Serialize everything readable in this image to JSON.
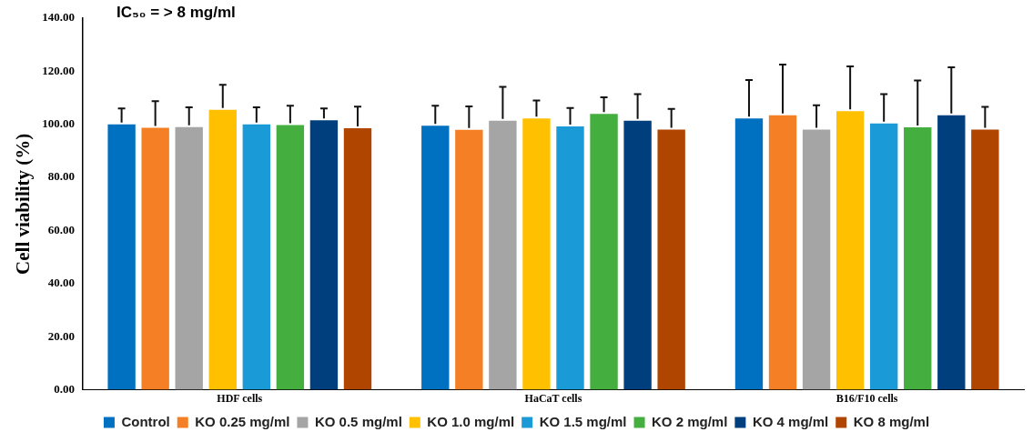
{
  "chart_data": {
    "type": "bar",
    "ylabel": "Cell viability (%)",
    "categories": [
      "HDF cells",
      "HaCaT cells",
      "B16/F10 cells"
    ],
    "series": [
      {
        "name": "Control",
        "color": "#0070c0",
        "values": [
          100,
          99.5,
          102.2
        ],
        "errors": [
          6,
          7.5,
          14.5
        ]
      },
      {
        "name": "KO 0.25 mg/ml",
        "color": "#f57f25",
        "values": [
          98.7,
          97.9,
          103.4
        ],
        "errors": [
          10,
          8.9,
          19.1
        ]
      },
      {
        "name": "KO 0.5 mg/ml",
        "color": "#a5a5a5",
        "values": [
          99,
          101.4,
          98
        ],
        "errors": [
          7.4,
          12.7,
          9.2
        ]
      },
      {
        "name": "KO 1.0 mg/ml",
        "color": "#ffc000",
        "values": [
          105.5,
          102.2,
          105
        ],
        "errors": [
          9.4,
          6.8,
          16.8
        ]
      },
      {
        "name": "KO 1.5 mg/ml",
        "color": "#1a9bd7",
        "values": [
          100,
          99.2,
          100.3
        ],
        "errors": [
          6.4,
          7,
          11.1
        ]
      },
      {
        "name": "KO 2 mg/ml",
        "color": "#44ae3e",
        "values": [
          99.7,
          103.9,
          98.9
        ],
        "errors": [
          7.3,
          6.3,
          17.6
        ]
      },
      {
        "name": "KO 4 mg/ml",
        "color": "#003f7d",
        "values": [
          101.5,
          101.4,
          103.4
        ],
        "errors": [
          4.5,
          10,
          18.1
        ]
      },
      {
        "name": "KO 8 mg/ml",
        "color": "#b04500",
        "values": [
          98.5,
          98,
          98
        ],
        "errors": [
          8.2,
          7.8,
          8.6
        ]
      }
    ],
    "ylim": [
      0,
      140
    ],
    "yticks": [
      {
        "value": 0,
        "label": "0.00"
      },
      {
        "value": 20,
        "label": "20.00"
      },
      {
        "value": 40,
        "label": "40.00"
      },
      {
        "value": 60,
        "label": "60.00"
      },
      {
        "value": 80,
        "label": "80.00"
      },
      {
        "value": 100,
        "label": "100.00"
      },
      {
        "value": 120,
        "label": "120.00"
      },
      {
        "value": 140,
        "label": "140.00"
      }
    ],
    "grid": false,
    "legend": "bottom",
    "annotations": [
      "IC₅₀ = > 8 mg/ml"
    ]
  }
}
